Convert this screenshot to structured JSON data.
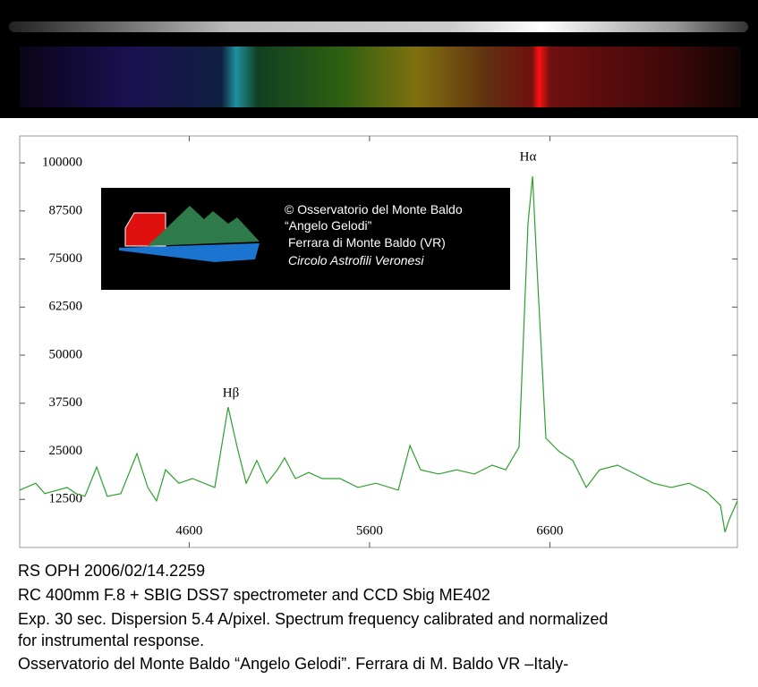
{
  "chart_data": {
    "type": "line",
    "annotations": [
      "Hα",
      "Hβ"
    ],
    "x": [
      3660,
      3749,
      3799,
      3923,
      3973,
      4022,
      4087,
      4146,
      4221,
      4310,
      4370,
      4419,
      4469,
      4543,
      4618,
      4742,
      4816,
      4866,
      4916,
      4975,
      5030,
      5089,
      5129,
      5189,
      5263,
      5337,
      5437,
      5536,
      5635,
      5759,
      5824,
      5883,
      5983,
      6082,
      6181,
      6280,
      6355,
      6429,
      6479,
      6504,
      6529,
      6578,
      6653,
      6727,
      6802,
      6876,
      6975,
      7074,
      7174,
      7273,
      7372,
      7471,
      7546,
      7571,
      7596,
      7640
    ],
    "series": [
      {
        "name": "RS OPH",
        "color": "#2ca02c",
        "values": [
          14900,
          16700,
          14000,
          15600,
          14000,
          13300,
          20900,
          13300,
          14000,
          24400,
          15600,
          12100,
          20200,
          16700,
          17900,
          15600,
          36500,
          26100,
          16700,
          22600,
          16700,
          20200,
          23300,
          17900,
          19500,
          17900,
          17900,
          15600,
          16700,
          14900,
          26500,
          20200,
          19100,
          20200,
          19100,
          21400,
          20200,
          26100,
          84200,
          96500,
          72600,
          28400,
          24900,
          22600,
          15600,
          20200,
          21400,
          19100,
          16700,
          15600,
          16700,
          14400,
          10900,
          4000,
          7400,
          12100
        ]
      }
    ],
    "xlim": [
      3660,
      7640
    ],
    "xticks": [
      4600,
      5600,
      6600
    ],
    "ylim": [
      0,
      107000
    ],
    "yticks": [
      12500,
      25000,
      37500,
      50000,
      62500,
      75000,
      87500,
      100000
    ]
  },
  "logo": {
    "lines": [
      "© Osservatorio del Monte Baldo",
      "“Angelo Gelodi”",
      "Ferrara di Monte Baldo (VR)",
      "Circolo Astrofili Veronesi"
    ]
  },
  "caption": {
    "title": "RS OPH 2006/02/14.2259",
    "lines": [
      "RC 400mm  F.8 + SBIG DSS7 spectrometer and CCD Sbig ME402",
      "Exp. 30 sec. Dispersion 5.4 A/pixel. Spectrum frequency calibrated and normalized",
      "for instrumental response.",
      "Osservatorio del Monte Baldo “Angelo Gelodi”. Ferrara di M. Baldo VR –Italy-"
    ]
  }
}
